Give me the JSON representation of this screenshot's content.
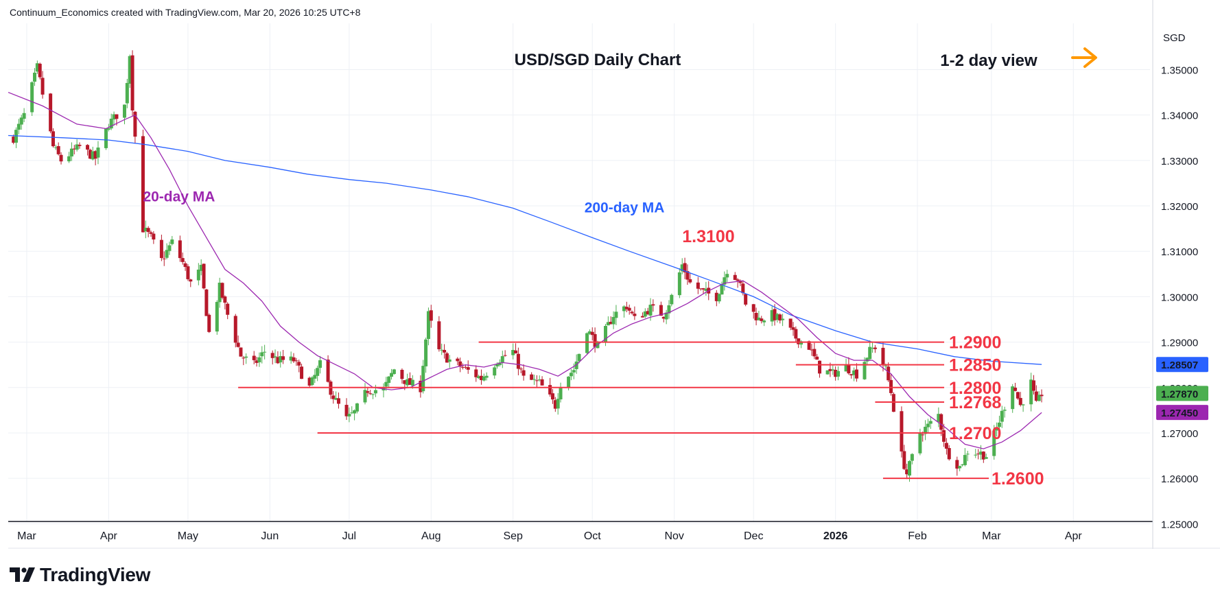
{
  "header": {
    "credit": "Continuum_Economics created with TradingView.com, Mar 20, 2026 10:25 UTC+8"
  },
  "footer": {
    "logo_text": "TradingView"
  },
  "colors": {
    "up": "#4caf50",
    "down": "#b7182a",
    "ma20": "#9c27b0",
    "ma200": "#2962ff",
    "level": "#f23645",
    "arrow": "#ff9800",
    "grid": "#edf0f5"
  },
  "chart_data": {
    "type": "candlestick",
    "title": "USD/SGD Daily Chart",
    "annotation": "1-2 day view",
    "currency": "SGD",
    "y_ticks": [
      "1.35000",
      "1.34000",
      "1.33000",
      "1.32000",
      "1.31000",
      "1.30000",
      "1.29000",
      "1.28000",
      "1.27000",
      "1.26000",
      "1.25000"
    ],
    "y_values": [
      1.35,
      1.34,
      1.33,
      1.32,
      1.31,
      1.3,
      1.29,
      1.28,
      1.27,
      1.26,
      1.25
    ],
    "ylim": [
      1.2505,
      1.3602
    ],
    "x_ticks": [
      "Mar",
      "Apr",
      "May",
      "Jun",
      "Jul",
      "Aug",
      "Sep",
      "Oct",
      "Nov",
      "Dec",
      "2026",
      "Feb",
      "Mar",
      "Apr"
    ],
    "x_tick_bold": [
      false,
      false,
      false,
      false,
      false,
      false,
      false,
      false,
      false,
      false,
      true,
      false,
      false,
      false
    ],
    "xlim": [
      "2025-02-22",
      "2026-04-30"
    ],
    "x_tick_dates": [
      "2025-03-01",
      "2025-04-01",
      "2025-05-01",
      "2025-06-01",
      "2025-07-01",
      "2025-08-01",
      "2025-09-01",
      "2025-10-01",
      "2025-11-01",
      "2025-12-01",
      "2026-01-01",
      "2026-02-01",
      "2026-03-01",
      "2026-04-01"
    ],
    "price_badges": [
      {
        "text": "1.28507",
        "value": 1.28507,
        "color": "#2962ff"
      },
      {
        "text": "1.27870",
        "value": 1.2787,
        "color": "#4caf50"
      },
      {
        "text": "1.27450",
        "value": 1.2745,
        "color": "#9c27b0"
      }
    ],
    "ma_labels": [
      {
        "text": "20-day MA",
        "color": "#9c27b0",
        "x": "2025-04-14",
        "y": 1.321
      },
      {
        "text": "200-day MA",
        "color": "#2962ff",
        "x": "2025-09-28",
        "y": 1.3186
      }
    ],
    "peak_label": {
      "text": "1.3100",
      "x": "2025-11-04",
      "y": 1.312
    },
    "levels": [
      {
        "value": 1.29,
        "label": "1.2900",
        "from": "2025-08-19"
      },
      {
        "value": 1.285,
        "label": "1.2850",
        "from": "2025-12-17"
      },
      {
        "value": 1.28,
        "label": "1.2800",
        "from": "2025-05-20"
      },
      {
        "value": 1.2768,
        "label": "1.2768",
        "from": "2026-01-16"
      },
      {
        "value": 1.27,
        "label": "1.2700",
        "from": "2025-06-19"
      },
      {
        "value": 1.26,
        "label": "1.2600",
        "from": "2026-01-19",
        "to": "2026-02-28"
      }
    ],
    "close_path": [
      [
        "2025-02-24",
        1.335
      ],
      [
        "2025-02-28",
        1.34
      ],
      [
        "2025-03-05",
        1.3505
      ],
      [
        "2025-03-11",
        1.333
      ],
      [
        "2025-03-14",
        1.33
      ],
      [
        "2025-03-21",
        1.333
      ],
      [
        "2025-03-27",
        1.3305
      ],
      [
        "2025-04-01",
        1.338
      ],
      [
        "2025-04-07",
        1.342
      ],
      [
        "2025-04-09",
        1.3535
      ],
      [
        "2025-04-10",
        1.342
      ],
      [
        "2025-04-14",
        1.315
      ],
      [
        "2025-04-17",
        1.313
      ],
      [
        "2025-04-21",
        1.308
      ],
      [
        "2025-04-25",
        1.312
      ],
      [
        "2025-04-29",
        1.3075
      ],
      [
        "2025-05-02",
        1.303
      ],
      [
        "2025-05-06",
        1.306
      ],
      [
        "2025-05-09",
        1.292
      ],
      [
        "2025-05-13",
        1.302
      ],
      [
        "2025-05-16",
        1.296
      ],
      [
        "2025-05-21",
        1.287
      ],
      [
        "2025-05-26",
        1.285
      ],
      [
        "2025-05-30",
        1.288
      ],
      [
        "2025-06-04",
        1.286
      ],
      [
        "2025-06-10",
        1.286
      ],
      [
        "2025-06-16",
        1.28
      ],
      [
        "2025-06-20",
        1.285
      ],
      [
        "2025-06-25",
        1.278
      ],
      [
        "2025-06-30",
        1.273
      ],
      [
        "2025-07-03",
        1.2745
      ],
      [
        "2025-07-08",
        1.2795
      ],
      [
        "2025-07-14",
        1.2795
      ],
      [
        "2025-07-18",
        1.284
      ],
      [
        "2025-07-23",
        1.281
      ],
      [
        "2025-07-28",
        1.28
      ],
      [
        "2025-07-31",
        1.296
      ],
      [
        "2025-08-04",
        1.288
      ],
      [
        "2025-08-08",
        1.286
      ],
      [
        "2025-08-14",
        1.284
      ],
      [
        "2025-08-20",
        1.282
      ],
      [
        "2025-08-26",
        1.286
      ],
      [
        "2025-09-01",
        1.288
      ],
      [
        "2025-09-05",
        1.282
      ],
      [
        "2025-09-11",
        1.281
      ],
      [
        "2025-09-17",
        1.276
      ],
      [
        "2025-09-19",
        1.281
      ],
      [
        "2025-09-24",
        1.284
      ],
      [
        "2025-09-29",
        1.293
      ],
      [
        "2025-10-03",
        1.289
      ],
      [
        "2025-10-09",
        1.296
      ],
      [
        "2025-10-14",
        1.298
      ],
      [
        "2025-10-17",
        1.295
      ],
      [
        "2025-10-23",
        1.2975
      ],
      [
        "2025-10-28",
        1.296
      ],
      [
        "2025-10-31",
        1.3
      ],
      [
        "2025-11-04",
        1.307
      ],
      [
        "2025-11-07",
        1.303
      ],
      [
        "2025-11-12",
        1.301
      ],
      [
        "2025-11-17",
        1.3
      ],
      [
        "2025-11-21",
        1.306
      ],
      [
        "2025-11-25",
        1.304
      ],
      [
        "2025-11-28",
        1.2985
      ],
      [
        "2025-12-03",
        1.295
      ],
      [
        "2025-12-08",
        1.296
      ],
      [
        "2025-12-12",
        1.2945
      ],
      [
        "2025-12-17",
        1.291
      ],
      [
        "2025-12-22",
        1.289
      ],
      [
        "2025-12-26",
        1.284
      ],
      [
        "2025-12-31",
        1.283
      ],
      [
        "2026-01-05",
        1.2845
      ],
      [
        "2026-01-09",
        1.283
      ],
      [
        "2026-01-14",
        1.288
      ],
      [
        "2026-01-16",
        1.289
      ],
      [
        "2026-01-20",
        1.284
      ],
      [
        "2026-01-22",
        1.279
      ],
      [
        "2026-01-26",
        1.265
      ],
      [
        "2026-01-28",
        1.261
      ],
      [
        "2026-02-02",
        1.27
      ],
      [
        "2026-02-05",
        1.2715
      ],
      [
        "2026-02-09",
        1.274
      ],
      [
        "2026-02-12",
        1.266
      ],
      [
        "2026-02-17",
        1.2625
      ],
      [
        "2026-02-20",
        1.266
      ],
      [
        "2026-02-25",
        1.2655
      ],
      [
        "2026-02-27",
        1.265
      ],
      [
        "2026-03-03",
        1.271
      ],
      [
        "2026-03-06",
        1.276
      ],
      [
        "2026-03-09",
        1.281
      ],
      [
        "2026-03-12",
        1.276
      ],
      [
        "2026-03-16",
        1.281
      ],
      [
        "2026-03-18",
        1.276
      ],
      [
        "2026-03-20",
        1.2787
      ]
    ],
    "ma20_path": [
      [
        "2025-02-22",
        1.345
      ],
      [
        "2025-03-07",
        1.342
      ],
      [
        "2025-03-20",
        1.338
      ],
      [
        "2025-03-31",
        1.337
      ],
      [
        "2025-04-07",
        1.339
      ],
      [
        "2025-04-11",
        1.34
      ],
      [
        "2025-04-17",
        1.335
      ],
      [
        "2025-04-24",
        1.328
      ],
      [
        "2025-05-01",
        1.32
      ],
      [
        "2025-05-08",
        1.313
      ],
      [
        "2025-05-15",
        1.306
      ],
      [
        "2025-05-22",
        1.303
      ],
      [
        "2025-05-29",
        1.299
      ],
      [
        "2025-06-05",
        1.2935
      ],
      [
        "2025-06-12",
        1.29
      ],
      [
        "2025-06-19",
        1.287
      ],
      [
        "2025-06-26",
        1.285
      ],
      [
        "2025-07-03",
        1.283
      ],
      [
        "2025-07-10",
        1.28
      ],
      [
        "2025-07-17",
        1.2795
      ],
      [
        "2025-07-24",
        1.28
      ],
      [
        "2025-07-31",
        1.282
      ],
      [
        "2025-08-07",
        1.284
      ],
      [
        "2025-08-14",
        1.285
      ],
      [
        "2025-08-21",
        1.2845
      ],
      [
        "2025-08-28",
        1.2855
      ],
      [
        "2025-09-04",
        1.285
      ],
      [
        "2025-09-11",
        1.284
      ],
      [
        "2025-09-18",
        1.2825
      ],
      [
        "2025-09-25",
        1.285
      ],
      [
        "2025-10-02",
        1.289
      ],
      [
        "2025-10-09",
        1.292
      ],
      [
        "2025-10-16",
        1.294
      ],
      [
        "2025-10-23",
        1.2955
      ],
      [
        "2025-10-30",
        1.2965
      ],
      [
        "2025-11-06",
        1.2985
      ],
      [
        "2025-11-13",
        1.301
      ],
      [
        "2025-11-20",
        1.303
      ],
      [
        "2025-11-27",
        1.3035
      ],
      [
        "2025-12-04",
        1.301
      ],
      [
        "2025-12-11",
        1.298
      ],
      [
        "2025-12-18",
        1.295
      ],
      [
        "2025-12-25",
        1.291
      ],
      [
        "2026-01-01",
        1.2875
      ],
      [
        "2026-01-08",
        1.286
      ],
      [
        "2026-01-15",
        1.286
      ],
      [
        "2026-01-22",
        1.283
      ],
      [
        "2026-01-29",
        1.278
      ],
      [
        "2026-02-05",
        1.274
      ],
      [
        "2026-02-12",
        1.271
      ],
      [
        "2026-02-19",
        1.2675
      ],
      [
        "2026-02-26",
        1.2665
      ],
      [
        "2026-03-05",
        1.268
      ],
      [
        "2026-03-12",
        1.2705
      ],
      [
        "2026-03-20",
        1.2745
      ]
    ],
    "ma200_path": [
      [
        "2025-02-22",
        1.3355
      ],
      [
        "2025-03-15",
        1.335
      ],
      [
        "2025-04-01",
        1.3345
      ],
      [
        "2025-04-15",
        1.3335
      ],
      [
        "2025-05-01",
        1.332
      ],
      [
        "2025-05-15",
        1.33
      ],
      [
        "2025-06-01",
        1.3285
      ],
      [
        "2025-06-15",
        1.327
      ],
      [
        "2025-07-01",
        1.3258
      ],
      [
        "2025-07-15",
        1.325
      ],
      [
        "2025-08-01",
        1.3235
      ],
      [
        "2025-08-15",
        1.322
      ],
      [
        "2025-09-01",
        1.3195
      ],
      [
        "2025-09-15",
        1.3165
      ],
      [
        "2025-10-01",
        1.313
      ],
      [
        "2025-10-15",
        1.31
      ],
      [
        "2025-11-01",
        1.3065
      ],
      [
        "2025-11-15",
        1.3035
      ],
      [
        "2025-12-01",
        1.3
      ],
      [
        "2025-12-15",
        1.296
      ],
      [
        "2026-01-01",
        1.2925
      ],
      [
        "2026-01-15",
        1.29
      ],
      [
        "2026-02-01",
        1.2885
      ],
      [
        "2026-02-15",
        1.2868
      ],
      [
        "2026-03-01",
        1.2858
      ],
      [
        "2026-03-20",
        1.28507
      ]
    ]
  }
}
